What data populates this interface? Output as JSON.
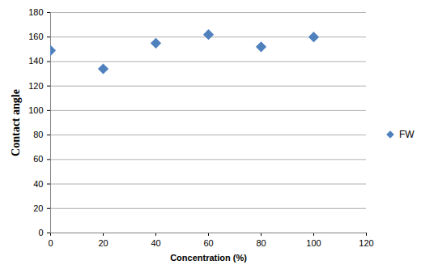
{
  "chart_data": {
    "type": "scatter",
    "x_label": "Concentration (%)",
    "y_label": "Contact angle",
    "x": [
      0,
      20,
      40,
      60,
      80,
      100
    ],
    "series": [
      {
        "name": "FW",
        "color": "#4f81bd",
        "marker": "diamond",
        "values": [
          149,
          134,
          155,
          162,
          152,
          160
        ]
      }
    ],
    "xlim": [
      0,
      120
    ],
    "xticks": [
      0,
      20,
      40,
      60,
      80,
      100,
      120
    ],
    "ylim": [
      0,
      180
    ],
    "yticks": [
      0,
      20,
      40,
      60,
      80,
      100,
      120,
      140,
      160,
      180
    ],
    "grid": true,
    "legend": "right"
  }
}
